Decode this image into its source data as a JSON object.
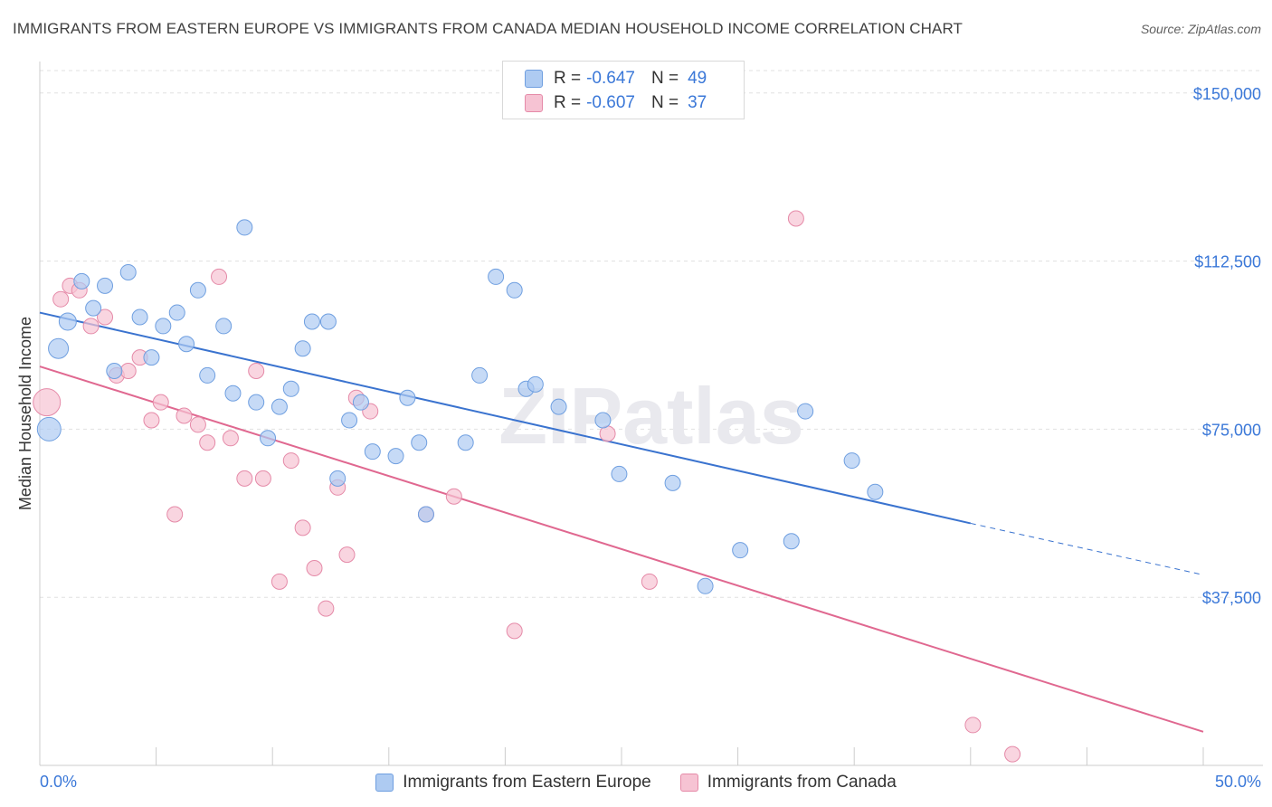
{
  "title": "IMMIGRANTS FROM EASTERN EUROPE VS IMMIGRANTS FROM CANADA MEDIAN HOUSEHOLD INCOME CORRELATION CHART",
  "source": "Source: ZipAtlas.com",
  "watermark": "ZIPatlas",
  "legend": {
    "rows": [
      {
        "r_label": "R =",
        "r_value": "-0.647",
        "n_label": "N =",
        "n_value": "49"
      },
      {
        "r_label": "R =",
        "r_value": "-0.607",
        "n_label": "N =",
        "n_value": "37"
      }
    ]
  },
  "colors": {
    "blue_fill": "#aecbf2",
    "blue_stroke": "#6f9fe0",
    "blue_line": "#3a73cf",
    "pink_fill": "#f6c3d3",
    "pink_stroke": "#e58aa8",
    "pink_line": "#e06890",
    "grid": "#e0e0e0",
    "tick_text": "#3b78d8"
  },
  "chart_data": {
    "type": "scatter",
    "title": "IMMIGRANTS FROM EASTERN EUROPE VS IMMIGRANTS FROM CANADA MEDIAN HOUSEHOLD INCOME CORRELATION CHART",
    "xlabel": "",
    "ylabel": "Median Household Income",
    "xlim": [
      0,
      50
    ],
    "ylim": [
      0,
      155000
    ],
    "x_tick_labels": [
      "0.0%",
      "50.0%"
    ],
    "y_ticks": [
      37500,
      75000,
      112500,
      150000
    ],
    "y_tick_labels": [
      "$37,500",
      "$75,000",
      "$112,500",
      "$150,000"
    ],
    "grid": true,
    "legend_position": "top-center",
    "series": [
      {
        "name": "Immigrants from Eastern Europe",
        "color": "#aecbf2",
        "r": -0.647,
        "n": 49,
        "trend": {
          "x0": 0,
          "y0": 101000,
          "x1": 40,
          "y1": 54000,
          "dashed_to_x": 50,
          "dashed_to_y": 42500
        },
        "points": [
          [
            0.4,
            75000
          ],
          [
            0.8,
            93000
          ],
          [
            1.2,
            99000
          ],
          [
            1.8,
            108000
          ],
          [
            2.3,
            102000
          ],
          [
            2.8,
            107000
          ],
          [
            3.2,
            88000
          ],
          [
            3.8,
            110000
          ],
          [
            4.3,
            100000
          ],
          [
            4.8,
            91000
          ],
          [
            5.3,
            98000
          ],
          [
            5.9,
            101000
          ],
          [
            6.3,
            94000
          ],
          [
            6.8,
            106000
          ],
          [
            7.2,
            87000
          ],
          [
            7.9,
            98000
          ],
          [
            8.3,
            83000
          ],
          [
            8.8,
            120000
          ],
          [
            9.3,
            81000
          ],
          [
            9.8,
            73000
          ],
          [
            10.3,
            80000
          ],
          [
            10.8,
            84000
          ],
          [
            11.3,
            93000
          ],
          [
            11.7,
            99000
          ],
          [
            12.4,
            99000
          ],
          [
            12.8,
            64000
          ],
          [
            13.3,
            77000
          ],
          [
            13.8,
            81000
          ],
          [
            14.3,
            70000
          ],
          [
            15.3,
            69000
          ],
          [
            15.8,
            82000
          ],
          [
            16.3,
            72000
          ],
          [
            16.6,
            56000
          ],
          [
            18.3,
            72000
          ],
          [
            18.9,
            87000
          ],
          [
            19.6,
            109000
          ],
          [
            20.4,
            106000
          ],
          [
            20.9,
            84000
          ],
          [
            21.3,
            85000
          ],
          [
            22.3,
            80000
          ],
          [
            24.2,
            77000
          ],
          [
            24.9,
            65000
          ],
          [
            27.2,
            63000
          ],
          [
            28.6,
            40000
          ],
          [
            30.1,
            48000
          ],
          [
            32.3,
            50000
          ],
          [
            32.9,
            79000
          ],
          [
            34.9,
            68000
          ],
          [
            35.9,
            61000
          ]
        ]
      },
      {
        "name": "Immigrants from Canada",
        "color": "#f6c3d3",
        "r": -0.607,
        "n": 37,
        "trend": {
          "x0": 0,
          "y0": 89000,
          "x1": 50,
          "y1": 7500
        },
        "points": [
          [
            0.3,
            81000
          ],
          [
            0.9,
            104000
          ],
          [
            1.3,
            107000
          ],
          [
            1.7,
            106000
          ],
          [
            2.2,
            98000
          ],
          [
            2.8,
            100000
          ],
          [
            3.3,
            87000
          ],
          [
            3.8,
            88000
          ],
          [
            4.3,
            91000
          ],
          [
            4.8,
            77000
          ],
          [
            5.2,
            81000
          ],
          [
            5.8,
            56000
          ],
          [
            6.2,
            78000
          ],
          [
            6.8,
            76000
          ],
          [
            7.2,
            72000
          ],
          [
            7.7,
            109000
          ],
          [
            8.2,
            73000
          ],
          [
            8.8,
            64000
          ],
          [
            9.3,
            88000
          ],
          [
            9.6,
            64000
          ],
          [
            10.3,
            41000
          ],
          [
            10.8,
            68000
          ],
          [
            11.3,
            53000
          ],
          [
            11.8,
            44000
          ],
          [
            12.3,
            35000
          ],
          [
            12.8,
            62000
          ],
          [
            13.2,
            47000
          ],
          [
            13.6,
            82000
          ],
          [
            14.2,
            79000
          ],
          [
            16.6,
            56000
          ],
          [
            17.8,
            60000
          ],
          [
            20.4,
            30000
          ],
          [
            24.4,
            74000
          ],
          [
            26.2,
            41000
          ],
          [
            32.5,
            122000
          ],
          [
            40.1,
            9000
          ],
          [
            41.8,
            2500
          ]
        ]
      }
    ]
  },
  "bottom_legend": {
    "items": [
      "Immigrants from Eastern Europe",
      "Immigrants from Canada"
    ]
  }
}
